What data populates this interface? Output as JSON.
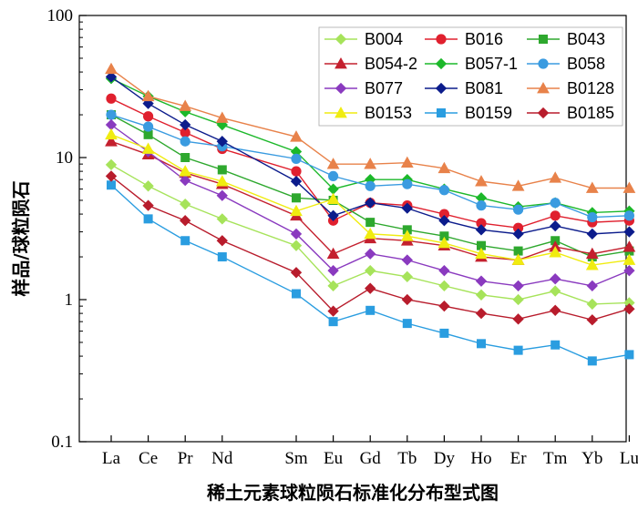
{
  "chart_data": {
    "type": "line",
    "xlabel": "稀土元素球粒陨石标准化分布型式图",
    "ylabel": "样品/球粒陨石",
    "yscale": "log",
    "ylim": [
      0.1,
      100
    ],
    "yticks": [
      {
        "value": 0.1,
        "label": "0.1"
      },
      {
        "value": 1,
        "label": "1"
      },
      {
        "value": 10,
        "label": "10"
      },
      {
        "value": 100,
        "label": "100"
      }
    ],
    "x": [
      {
        "label": "La",
        "pos": 0
      },
      {
        "label": "Ce",
        "pos": 1
      },
      {
        "label": "Pr",
        "pos": 2
      },
      {
        "label": "Nd",
        "pos": 3
      },
      {
        "label": "Sm",
        "pos": 5
      },
      {
        "label": "Eu",
        "pos": 6
      },
      {
        "label": "Gd",
        "pos": 7
      },
      {
        "label": "Tb",
        "pos": 8
      },
      {
        "label": "Dy",
        "pos": 9
      },
      {
        "label": "Ho",
        "pos": 10
      },
      {
        "label": "Er",
        "pos": 11
      },
      {
        "label": "Tm",
        "pos": 12
      },
      {
        "label": "Yb",
        "pos": 13
      },
      {
        "label": "Lu",
        "pos": 14
      }
    ],
    "legend_position": "top-right",
    "legend_columns": 3,
    "series": [
      {
        "name": "B004",
        "color": "#a6e35a",
        "marker": "diamond",
        "values": [
          8.9,
          6.3,
          4.7,
          3.7,
          2.4,
          1.25,
          1.6,
          1.45,
          1.25,
          1.08,
          1.0,
          1.15,
          0.93,
          0.95
        ]
      },
      {
        "name": "B016",
        "color": "#e0202e",
        "marker": "circle",
        "values": [
          26,
          19.5,
          15,
          11.5,
          8.0,
          3.6,
          4.8,
          4.6,
          4.0,
          3.45,
          3.2,
          3.9,
          3.5,
          3.6
        ]
      },
      {
        "name": "B043",
        "color": "#2ea82e",
        "marker": "square",
        "values": [
          20,
          14.5,
          10,
          8.2,
          5.2,
          5.0,
          3.5,
          3.1,
          2.8,
          2.4,
          2.2,
          2.6,
          2.0,
          2.2
        ]
      },
      {
        "name": "B054-2",
        "color": "#c4202e",
        "marker": "triangle",
        "values": [
          13,
          10.5,
          7.8,
          6.5,
          3.9,
          2.1,
          2.7,
          2.6,
          2.4,
          2.0,
          1.9,
          2.35,
          2.1,
          2.35
        ]
      },
      {
        "name": "B057-1",
        "color": "#1cb82a",
        "marker": "diamond",
        "values": [
          36,
          27,
          21,
          17,
          11,
          6.0,
          7.0,
          7.0,
          6.0,
          5.2,
          4.5,
          4.8,
          4.1,
          4.2
        ]
      },
      {
        "name": "B058",
        "color": "#3a9be0",
        "marker": "circle",
        "values": [
          20,
          16.5,
          13,
          12,
          9.8,
          7.4,
          6.3,
          6.5,
          5.9,
          4.6,
          4.3,
          4.8,
          3.8,
          3.9
        ]
      },
      {
        "name": "B077",
        "color": "#8a3abf",
        "marker": "diamond",
        "values": [
          17,
          11,
          6.9,
          5.4,
          2.9,
          1.6,
          2.1,
          1.9,
          1.6,
          1.35,
          1.25,
          1.4,
          1.25,
          1.6
        ]
      },
      {
        "name": "B081",
        "color": "#0c1c8c",
        "marker": "diamond",
        "values": [
          37,
          24,
          17,
          13,
          6.8,
          3.9,
          4.8,
          4.4,
          3.6,
          3.1,
          2.9,
          3.3,
          2.9,
          3.0
        ]
      },
      {
        "name": "B0128",
        "color": "#e8824a",
        "marker": "triangle",
        "values": [
          42,
          27,
          23,
          19,
          14,
          9.0,
          9.0,
          9.2,
          8.4,
          6.8,
          6.3,
          7.2,
          6.1,
          6.1
        ]
      },
      {
        "name": "B0153",
        "color": "#f0ec10",
        "marker": "triangle",
        "values": [
          14.5,
          11.5,
          8.0,
          6.8,
          4.2,
          5.1,
          2.9,
          2.8,
          2.5,
          2.1,
          1.9,
          2.15,
          1.75,
          1.9
        ]
      },
      {
        "name": "B0159",
        "color": "#2a9de0",
        "marker": "square",
        "values": [
          6.4,
          3.7,
          2.6,
          2.0,
          1.1,
          0.7,
          0.84,
          0.68,
          0.58,
          0.49,
          0.44,
          0.48,
          0.37,
          0.41
        ]
      },
      {
        "name": "B0185",
        "color": "#b81c2c",
        "marker": "diamond",
        "values": [
          7.4,
          4.6,
          3.6,
          2.6,
          1.55,
          0.83,
          1.2,
          1.0,
          0.9,
          0.8,
          0.73,
          0.84,
          0.72,
          0.86
        ]
      }
    ]
  }
}
